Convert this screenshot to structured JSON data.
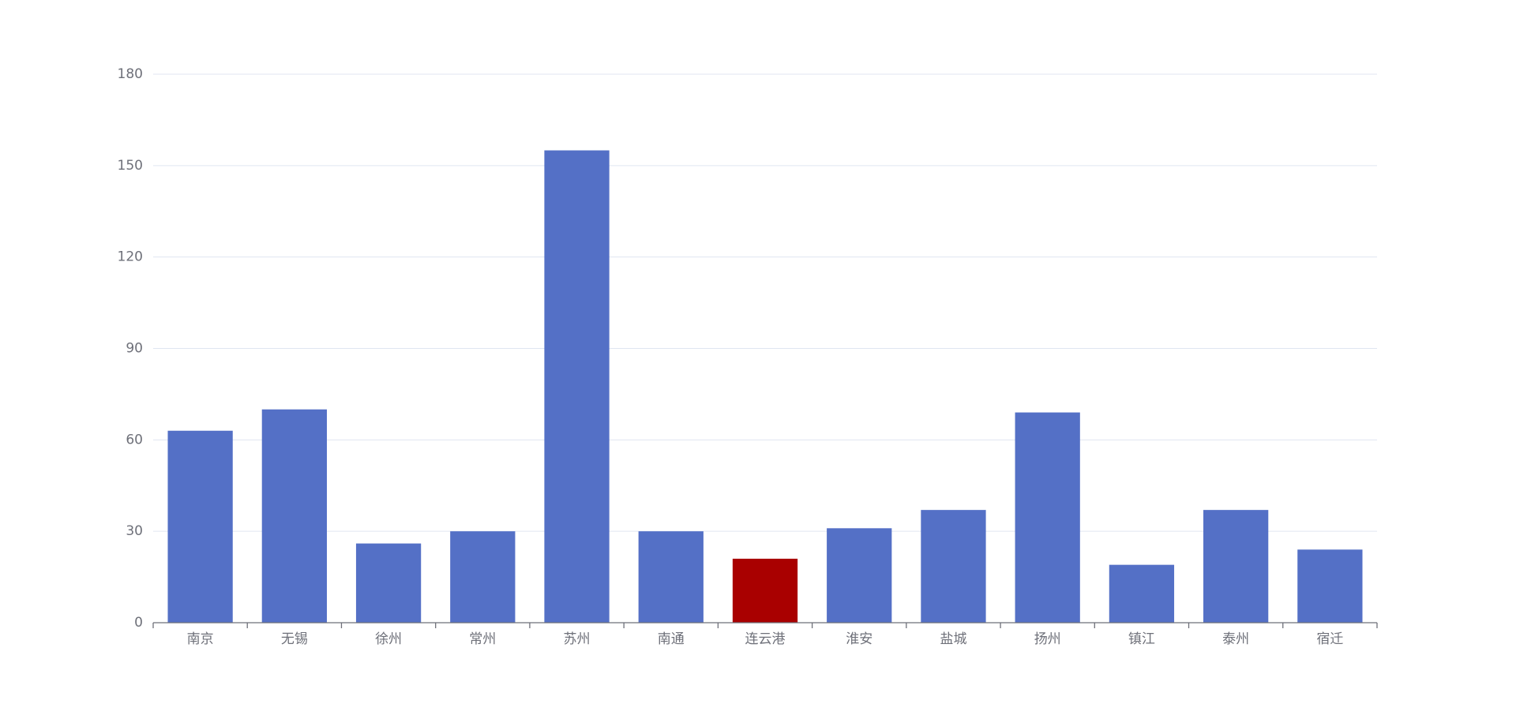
{
  "chart_data": {
    "type": "bar",
    "categories": [
      "南京",
      "无锡",
      "徐州",
      "常州",
      "苏州",
      "南通",
      "连云港",
      "淮安",
      "盐城",
      "扬州",
      "镇江",
      "泰州",
      "宿迁"
    ],
    "values": [
      63,
      70,
      26,
      30,
      155,
      30,
      21,
      31,
      37,
      69,
      19,
      37,
      24
    ],
    "colors": [
      "#5470c6",
      "#5470c6",
      "#5470c6",
      "#5470c6",
      "#5470c6",
      "#5470c6",
      "#a90000",
      "#5470c6",
      "#5470c6",
      "#5470c6",
      "#5470c6",
      "#5470c6",
      "#5470c6"
    ],
    "ylim": [
      0,
      180
    ],
    "yticks": [
      0,
      30,
      60,
      90,
      120,
      150,
      180
    ],
    "grid": true
  }
}
